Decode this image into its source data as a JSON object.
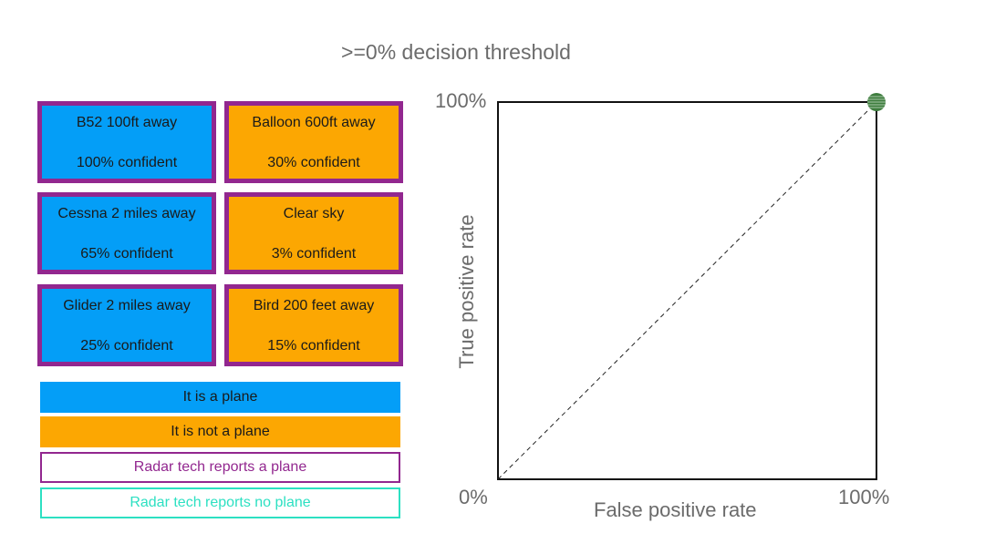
{
  "title": ">=0% decision threshold",
  "colors": {
    "plane": "#049ef7",
    "not_plane": "#fca702",
    "reports_plane_border": "#92278f",
    "reports_no_plane_border": "#2de0c2",
    "point": "#3e7d3e"
  },
  "cards": [
    {
      "line1": "B52 100ft away",
      "line2": "100% confident",
      "kind": "plane"
    },
    {
      "line1": "Balloon 600ft away",
      "line2": "30% confident",
      "kind": "not_plane"
    },
    {
      "line1": "Cessna 2 miles away",
      "line2": "65% confident",
      "kind": "plane"
    },
    {
      "line1": "Clear sky",
      "line2": "3% confident",
      "kind": "not_plane"
    },
    {
      "line1": "Glider 2 miles away",
      "line2": "25% confident",
      "kind": "plane"
    },
    {
      "line1": "Bird 200 feet away",
      "line2": "15% confident",
      "kind": "not_plane"
    }
  ],
  "legend": {
    "plane": "It is a plane",
    "not_plane": "It is not a plane",
    "reports_plane": "Radar tech reports a plane",
    "reports_no_plane": "Radar tech reports no plane"
  },
  "chart_data": {
    "type": "scatter",
    "title": ">=0% decision threshold",
    "xlabel": "False positive rate",
    "ylabel": "True positive rate",
    "xlim": [
      0,
      100
    ],
    "ylim": [
      0,
      100
    ],
    "tick_labels": {
      "origin": "0%",
      "x_max": "100%",
      "y_max": "100%"
    },
    "points": [
      {
        "x": 100,
        "y": 100
      }
    ],
    "reference_line": {
      "from": [
        0,
        0
      ],
      "to": [
        100,
        100
      ],
      "style": "dashed"
    },
    "grid": false
  }
}
